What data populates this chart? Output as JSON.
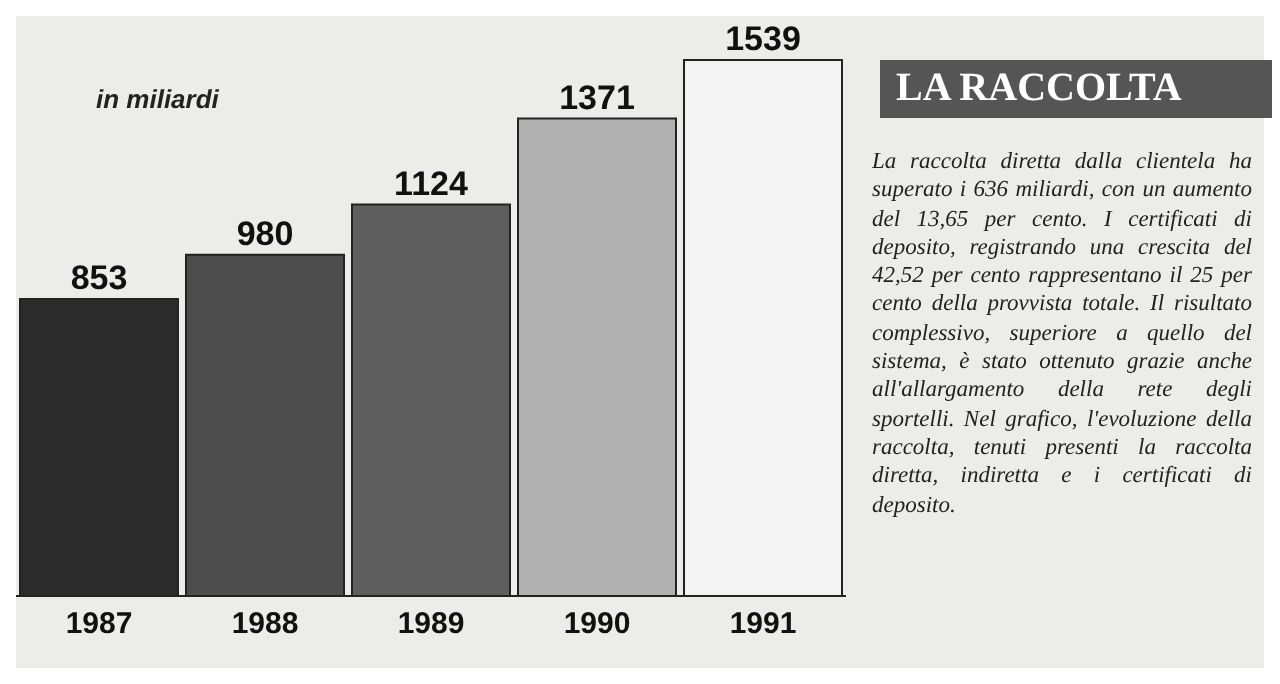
{
  "chart_data": {
    "type": "bar",
    "title": "LA RACCOLTA",
    "subtitle": "in miliardi",
    "categories": [
      "1987",
      "1988",
      "1989",
      "1990",
      "1991"
    ],
    "values": [
      853,
      980,
      1124,
      1371,
      1539
    ],
    "colors": [
      "#2b2b2b",
      "#4d4d4d",
      "#5e5e5e",
      "#b0b0b0",
      "#f4f4f4"
    ],
    "data_labels": true,
    "tick_labels": "x",
    "grid": false,
    "legend": false,
    "annotations": [
      "La raccolta diretta dalla clientela ha superato i 636 miliardi, con un aumento del 13,65 per cento. I certificati di deposito, registrando una crescita del 42,52 per cento rappresentano il 25 per cento della provvista totale. Il risultato complessivo, superiore a quello del sistema, è stato ottenuto grazie anche all'allargamento della rete degli sportelli. Nel grafico, l'evoluzione della raccolta, tenuti presenti la raccolta diretta, indiretta e i certificati di deposito."
    ]
  }
}
